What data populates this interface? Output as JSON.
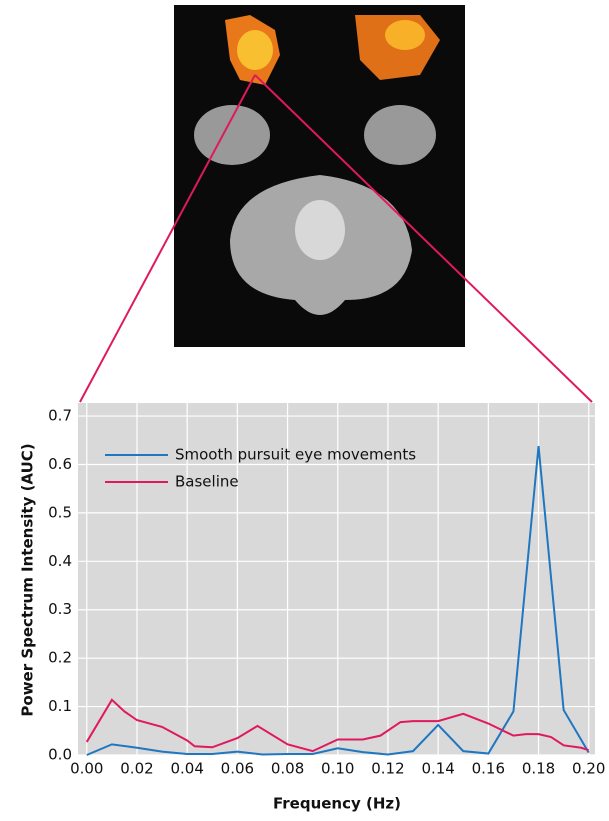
{
  "chart_data": {
    "type": "line",
    "xlabel": "Frequency (Hz)",
    "ylabel": "Power Spectrum Intensity (AUC)",
    "xlim": [
      -0.0035,
      0.2025
    ],
    "ylim": [
      0,
      0.727
    ],
    "xticks": [
      {
        "value": 0,
        "label": "0.00"
      },
      {
        "value": 0.02,
        "label": "0.02"
      },
      {
        "value": 0.04,
        "label": "0.04"
      },
      {
        "value": 0.06,
        "label": "0.06"
      },
      {
        "value": 0.08,
        "label": "0.08"
      },
      {
        "value": 0.1,
        "label": "0.10"
      },
      {
        "value": 0.12,
        "label": "0.12"
      },
      {
        "value": 0.14,
        "label": "0.14"
      },
      {
        "value": 0.16,
        "label": "0.16"
      },
      {
        "value": 0.18,
        "label": "0.18"
      },
      {
        "value": 0.2,
        "label": "0.20"
      }
    ],
    "yticks": [
      {
        "value": 0,
        "label": "0.0"
      },
      0.1,
      0.2,
      0.3,
      0.4,
      0.5,
      0.6,
      0.7
    ],
    "grid": true,
    "legend": "upper left",
    "series": [
      {
        "name": "Smooth pursuit eye movements",
        "color": "#1f77c0",
        "x": [
          0,
          0.01,
          0.02,
          0.03,
          0.04,
          0.05,
          0.06,
          0.07,
          0.08,
          0.09,
          0.1,
          0.11,
          0.12,
          0.13,
          0.14,
          0.15,
          0.16,
          0.17,
          0.18,
          0.19,
          0.2
        ],
        "values": [
          0.0,
          0.022,
          0.015,
          0.007,
          0.002,
          0.002,
          0.007,
          0.001,
          0.002,
          0.002,
          0.014,
          0.006,
          0.001,
          0.008,
          0.062,
          0.008,
          0.003,
          0.09,
          0.638,
          0.093,
          0.005
        ]
      },
      {
        "name": "Baseline",
        "color": "#e0195f",
        "x": [
          0,
          0.01,
          0.015,
          0.02,
          0.03,
          0.04,
          0.043,
          0.05,
          0.06,
          0.068,
          0.08,
          0.09,
          0.1,
          0.11,
          0.117,
          0.125,
          0.13,
          0.14,
          0.15,
          0.16,
          0.17,
          0.175,
          0.18,
          0.185,
          0.19,
          0.197,
          0.2
        ],
        "values": [
          0.027,
          0.114,
          0.09,
          0.072,
          0.058,
          0.03,
          0.018,
          0.016,
          0.035,
          0.06,
          0.022,
          0.008,
          0.032,
          0.032,
          0.04,
          0.068,
          0.07,
          0.07,
          0.085,
          0.065,
          0.04,
          0.043,
          0.043,
          0.037,
          0.02,
          0.015,
          0.01
        ]
      }
    ]
  }
}
